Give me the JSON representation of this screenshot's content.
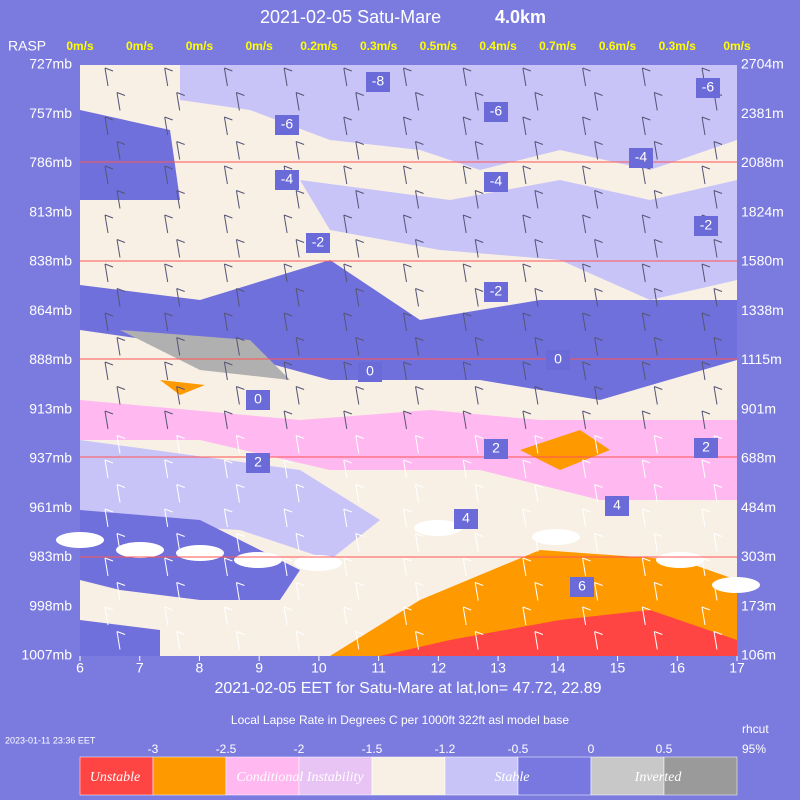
{
  "header": {
    "title": "2021-02-05  Satu-Mare",
    "title_height": "4.0km",
    "rasp": "RASP"
  },
  "wind_speeds": [
    "0m/s",
    "0m/s",
    "0m/s",
    "0m/s",
    "0.2m/s",
    "0.3m/s",
    "0.5m/s",
    "0.4m/s",
    "0.7m/s",
    "0.6m/s",
    "0.3m/s",
    "0m/s"
  ],
  "pressure_labels": [
    "727mb",
    "757mb",
    "786mb",
    "813mb",
    "838mb",
    "864mb",
    "888mb",
    "913mb",
    "937mb",
    "961mb",
    "983mb",
    "998mb",
    "1007mb"
  ],
  "height_labels": [
    "2704m",
    "2381m",
    "2088m",
    "1824m",
    "1580m",
    "1338m",
    "1115m",
    "901m",
    "688m",
    "484m",
    "303m",
    "173m",
    "106m"
  ],
  "time_ticks": [
    6,
    7,
    8,
    9,
    10,
    11,
    12,
    13,
    14,
    15,
    16,
    17
  ],
  "x_label": "2021-02-05 EET for Satu-Mare at lat,lon= 47.72, 22.89",
  "caption": "Local Lapse Rate in Degrees C per 1000ft  322ft asl model base",
  "timestamp": "2023-01-11 23:36 EET",
  "rhcut_label": "rhcut",
  "rhcut_value": "95%",
  "contour_labels": [
    "-8",
    "-6",
    "-6",
    "-6",
    "-4",
    "-4",
    "-4",
    "-2",
    "-2",
    "-2",
    "0",
    "0",
    "0",
    "2",
    "2",
    "2",
    "4",
    "4",
    "6"
  ],
  "legend": {
    "ticks": [
      -3,
      -2.5,
      -2,
      -1.5,
      -1.2,
      -0.5,
      0,
      0.5
    ],
    "colors": [
      "#ff4444",
      "#ff9900",
      "#ffb8f0",
      "#e8c4f4",
      "#f8f0e4",
      "#c8c4f8",
      "#7878e0",
      "#c8c8c8",
      "#9a9a9a"
    ],
    "labels": [
      "Unstable",
      "Conditional Instability",
      "Stable",
      "Inverted"
    ]
  }
}
